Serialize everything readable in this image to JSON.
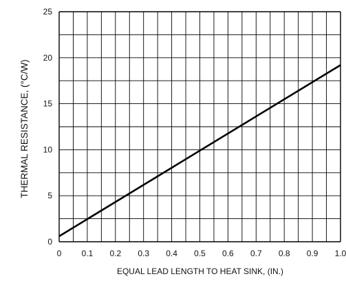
{
  "chart_data": {
    "type": "line",
    "title": "",
    "xlabel": "EQUAL LEAD LENGTH TO HEAT SINK, (IN.)",
    "ylabel": "THERMAL RESISTANCE, (°C/W)",
    "xlim": [
      0,
      1.0
    ],
    "ylim": [
      0,
      25
    ],
    "x_ticks": [
      "0",
      "0.1",
      "0.2",
      "0.3",
      "0.4",
      "0.5",
      "0.6",
      "0.7",
      "0.8",
      "0.9",
      "1.0"
    ],
    "y_ticks": [
      "0",
      "5",
      "10",
      "15",
      "20",
      "25"
    ],
    "grid": true,
    "series": [
      {
        "x": [
          0,
          1.0
        ],
        "y": [
          0.6,
          19.2
        ]
      }
    ]
  }
}
